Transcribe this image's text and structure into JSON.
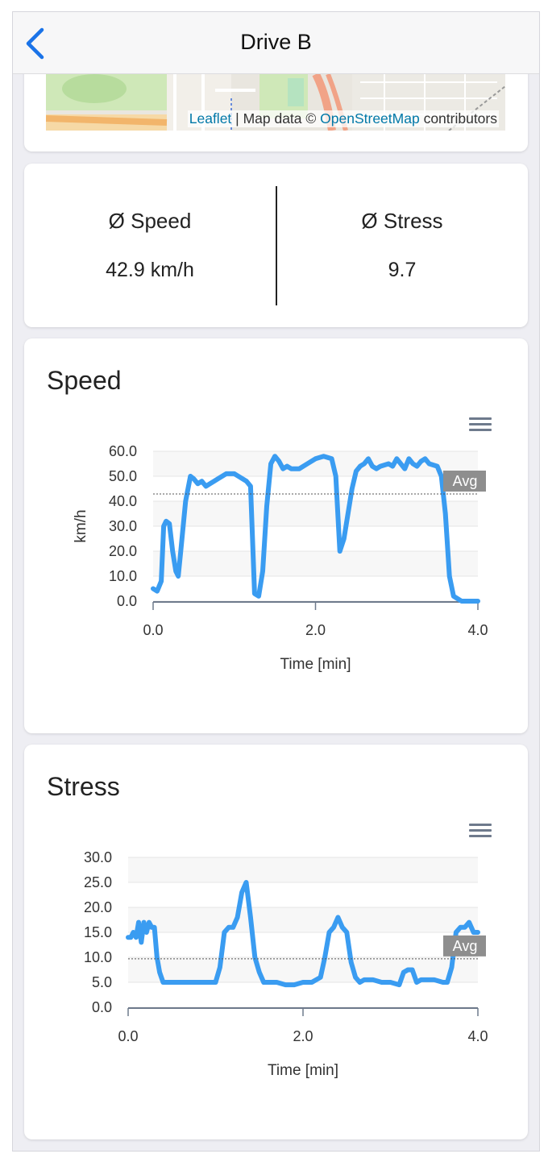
{
  "header": {
    "title": "Drive B"
  },
  "map": {
    "attribution_link1": "Leaflet",
    "attribution_sep": " | Map data © ",
    "attribution_link2": "OpenStreetMap",
    "attribution_tail": " contributors"
  },
  "stats": {
    "speed": {
      "label": "Ø Speed",
      "value": "42.9 km/h"
    },
    "stress": {
      "label": "Ø Stress",
      "value": "9.7"
    }
  },
  "chart_data": [
    {
      "type": "line",
      "title": "Speed",
      "xlabel": "Time [min]",
      "ylabel": "km/h",
      "xlim": [
        0,
        4
      ],
      "ylim": [
        0,
        60
      ],
      "xticks": [
        "0.0",
        "2.0",
        "4.0"
      ],
      "yticks": [
        "0.0",
        "10.0",
        "20.0",
        "30.0",
        "40.0",
        "50.0",
        "60.0"
      ],
      "avg_label": "Avg",
      "avg_value": 42.9,
      "color": "#3a9cf1",
      "x": [
        0.0,
        0.05,
        0.1,
        0.13,
        0.16,
        0.2,
        0.24,
        0.28,
        0.31,
        0.34,
        0.4,
        0.46,
        0.5,
        0.55,
        0.6,
        0.65,
        0.7,
        0.75,
        0.8,
        0.9,
        1.0,
        1.05,
        1.1,
        1.15,
        1.2,
        1.25,
        1.3,
        1.35,
        1.4,
        1.45,
        1.5,
        1.55,
        1.6,
        1.65,
        1.7,
        1.8,
        1.9,
        2.0,
        2.1,
        2.2,
        2.25,
        2.3,
        2.35,
        2.4,
        2.45,
        2.5,
        2.55,
        2.6,
        2.65,
        2.7,
        2.75,
        2.8,
        2.9,
        2.95,
        3.0,
        3.1,
        3.15,
        3.2,
        3.25,
        3.3,
        3.35,
        3.4,
        3.5,
        3.55,
        3.6,
        3.65,
        3.7,
        3.75,
        3.8,
        3.85,
        3.9,
        4.0
      ],
      "y": [
        5,
        4,
        8,
        30,
        32,
        31,
        20,
        12,
        10,
        20,
        40,
        50,
        49,
        47,
        48,
        46,
        47,
        48,
        49,
        51,
        51,
        50,
        49,
        48,
        46,
        3,
        2,
        12,
        38,
        55,
        58,
        56,
        53,
        54,
        53,
        53,
        55,
        57,
        58,
        57,
        50,
        20,
        25,
        35,
        45,
        52,
        54,
        55,
        57,
        54,
        53,
        54,
        55,
        54,
        57,
        53,
        57,
        55,
        54,
        56,
        57,
        55,
        54,
        50,
        35,
        10,
        2,
        1,
        0,
        0,
        0,
        0
      ]
    },
    {
      "type": "line",
      "title": "Stress",
      "xlabel": "Time [min]",
      "ylabel": "",
      "xlim": [
        0,
        4
      ],
      "ylim": [
        0,
        30
      ],
      "xticks": [
        "0.0",
        "2.0",
        "4.0"
      ],
      "yticks": [
        "0.0",
        "5.0",
        "10.0",
        "15.0",
        "20.0",
        "25.0",
        "30.0"
      ],
      "avg_label": "Avg",
      "avg_value": 9.7,
      "color": "#3a9cf1",
      "x": [
        0.0,
        0.03,
        0.06,
        0.09,
        0.12,
        0.15,
        0.18,
        0.21,
        0.24,
        0.27,
        0.3,
        0.33,
        0.36,
        0.4,
        0.45,
        0.5,
        0.6,
        0.7,
        0.8,
        0.9,
        1.0,
        1.05,
        1.1,
        1.15,
        1.2,
        1.25,
        1.3,
        1.35,
        1.4,
        1.45,
        1.5,
        1.55,
        1.6,
        1.65,
        1.7,
        1.8,
        1.9,
        2.0,
        2.1,
        2.2,
        2.25,
        2.3,
        2.35,
        2.4,
        2.45,
        2.5,
        2.55,
        2.6,
        2.65,
        2.7,
        2.75,
        2.8,
        2.9,
        3.0,
        3.1,
        3.15,
        3.2,
        3.25,
        3.3,
        3.35,
        3.4,
        3.5,
        3.6,
        3.65,
        3.7,
        3.75,
        3.8,
        3.85,
        3.9,
        3.95,
        4.0
      ],
      "y": [
        14,
        14,
        15,
        14,
        17,
        13,
        17,
        15,
        17,
        16,
        16,
        10,
        7,
        5,
        5,
        5,
        5,
        5,
        5,
        5,
        5,
        8,
        15,
        16,
        16,
        18,
        23,
        25,
        18,
        10,
        7,
        5,
        5,
        5,
        5,
        4.5,
        4.5,
        5,
        5,
        6,
        10,
        15,
        16,
        18,
        16,
        15,
        9,
        6,
        5,
        5.5,
        5.5,
        5.5,
        5,
        5,
        4.5,
        7,
        7.5,
        7.5,
        5,
        5.5,
        5.5,
        5.5,
        5,
        5,
        8,
        15,
        16,
        16,
        17,
        15,
        15
      ]
    }
  ]
}
